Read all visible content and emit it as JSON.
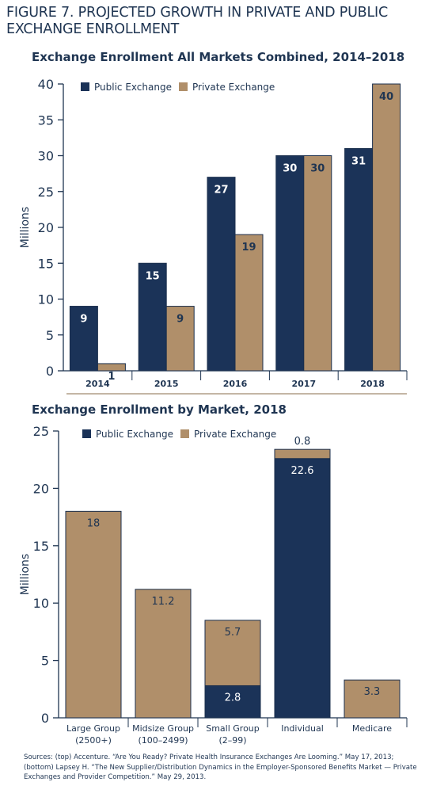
{
  "figure_title_line1": "FIGURE 7. PROJECTED GROWTH IN PRIVATE AND PUBLIC",
  "figure_title_line2": "EXCHANGE ENROLLMENT",
  "colors": {
    "public": "#1b3358",
    "private": "#b08f6a",
    "axis": "#1f3552",
    "divider": "#8a6e4b"
  },
  "chart_data": [
    {
      "type": "bar",
      "title": "Exchange Enrollment All Markets Combined, 2014–2018",
      "ylabel": "Millions",
      "ylim": [
        0,
        40
      ],
      "yticks": [
        0,
        5,
        10,
        15,
        20,
        25,
        30,
        35,
        40
      ],
      "categories": [
        "2014",
        "2015",
        "2016",
        "2017",
        "2018"
      ],
      "series": [
        {
          "name": "Public Exchange",
          "color": "#1b3358",
          "values": [
            9,
            15,
            27,
            30,
            31
          ]
        },
        {
          "name": "Private Exchange",
          "color": "#b08f6a",
          "values": [
            1,
            9,
            19,
            30,
            40
          ]
        }
      ],
      "legend": "top-left"
    },
    {
      "type": "bar",
      "stacked": true,
      "title": "Exchange Enrollment by Market, 2018",
      "ylabel": "Millions",
      "ylim": [
        0,
        25
      ],
      "yticks": [
        0,
        5,
        10,
        15,
        20,
        25
      ],
      "categories": [
        [
          "Large Group",
          "(2500+)"
        ],
        [
          "Midsize Group",
          "(100–2499)"
        ],
        [
          "Small Group",
          "(2–99)"
        ],
        [
          "Individual"
        ],
        [
          "Medicare"
        ]
      ],
      "series": [
        {
          "name": "Public Exchange",
          "color": "#1b3358",
          "values": [
            0,
            0,
            2.8,
            22.6,
            0
          ],
          "labels": [
            "",
            "",
            "2.8",
            "22.6",
            ""
          ]
        },
        {
          "name": "Private Exchange",
          "color": "#b08f6a",
          "values": [
            18,
            11.2,
            5.7,
            0.8,
            3.3
          ],
          "labels": [
            "18",
            "11.2",
            "5.7",
            "0.8",
            "3.3"
          ]
        }
      ],
      "legend": "top-center"
    }
  ],
  "sources": [
    "Sources: (top) Accenture. “Are You Ready? Private Health Insurance Exchanges Are Looming.” May 17, 2013;",
    "(bottom) Lapsey H. “The New Supplier/Distribution Dynamics in the Employer-Sponsored Benefits Market — Private",
    "Exchanges and Provider Competition.” May 29, 2013."
  ]
}
